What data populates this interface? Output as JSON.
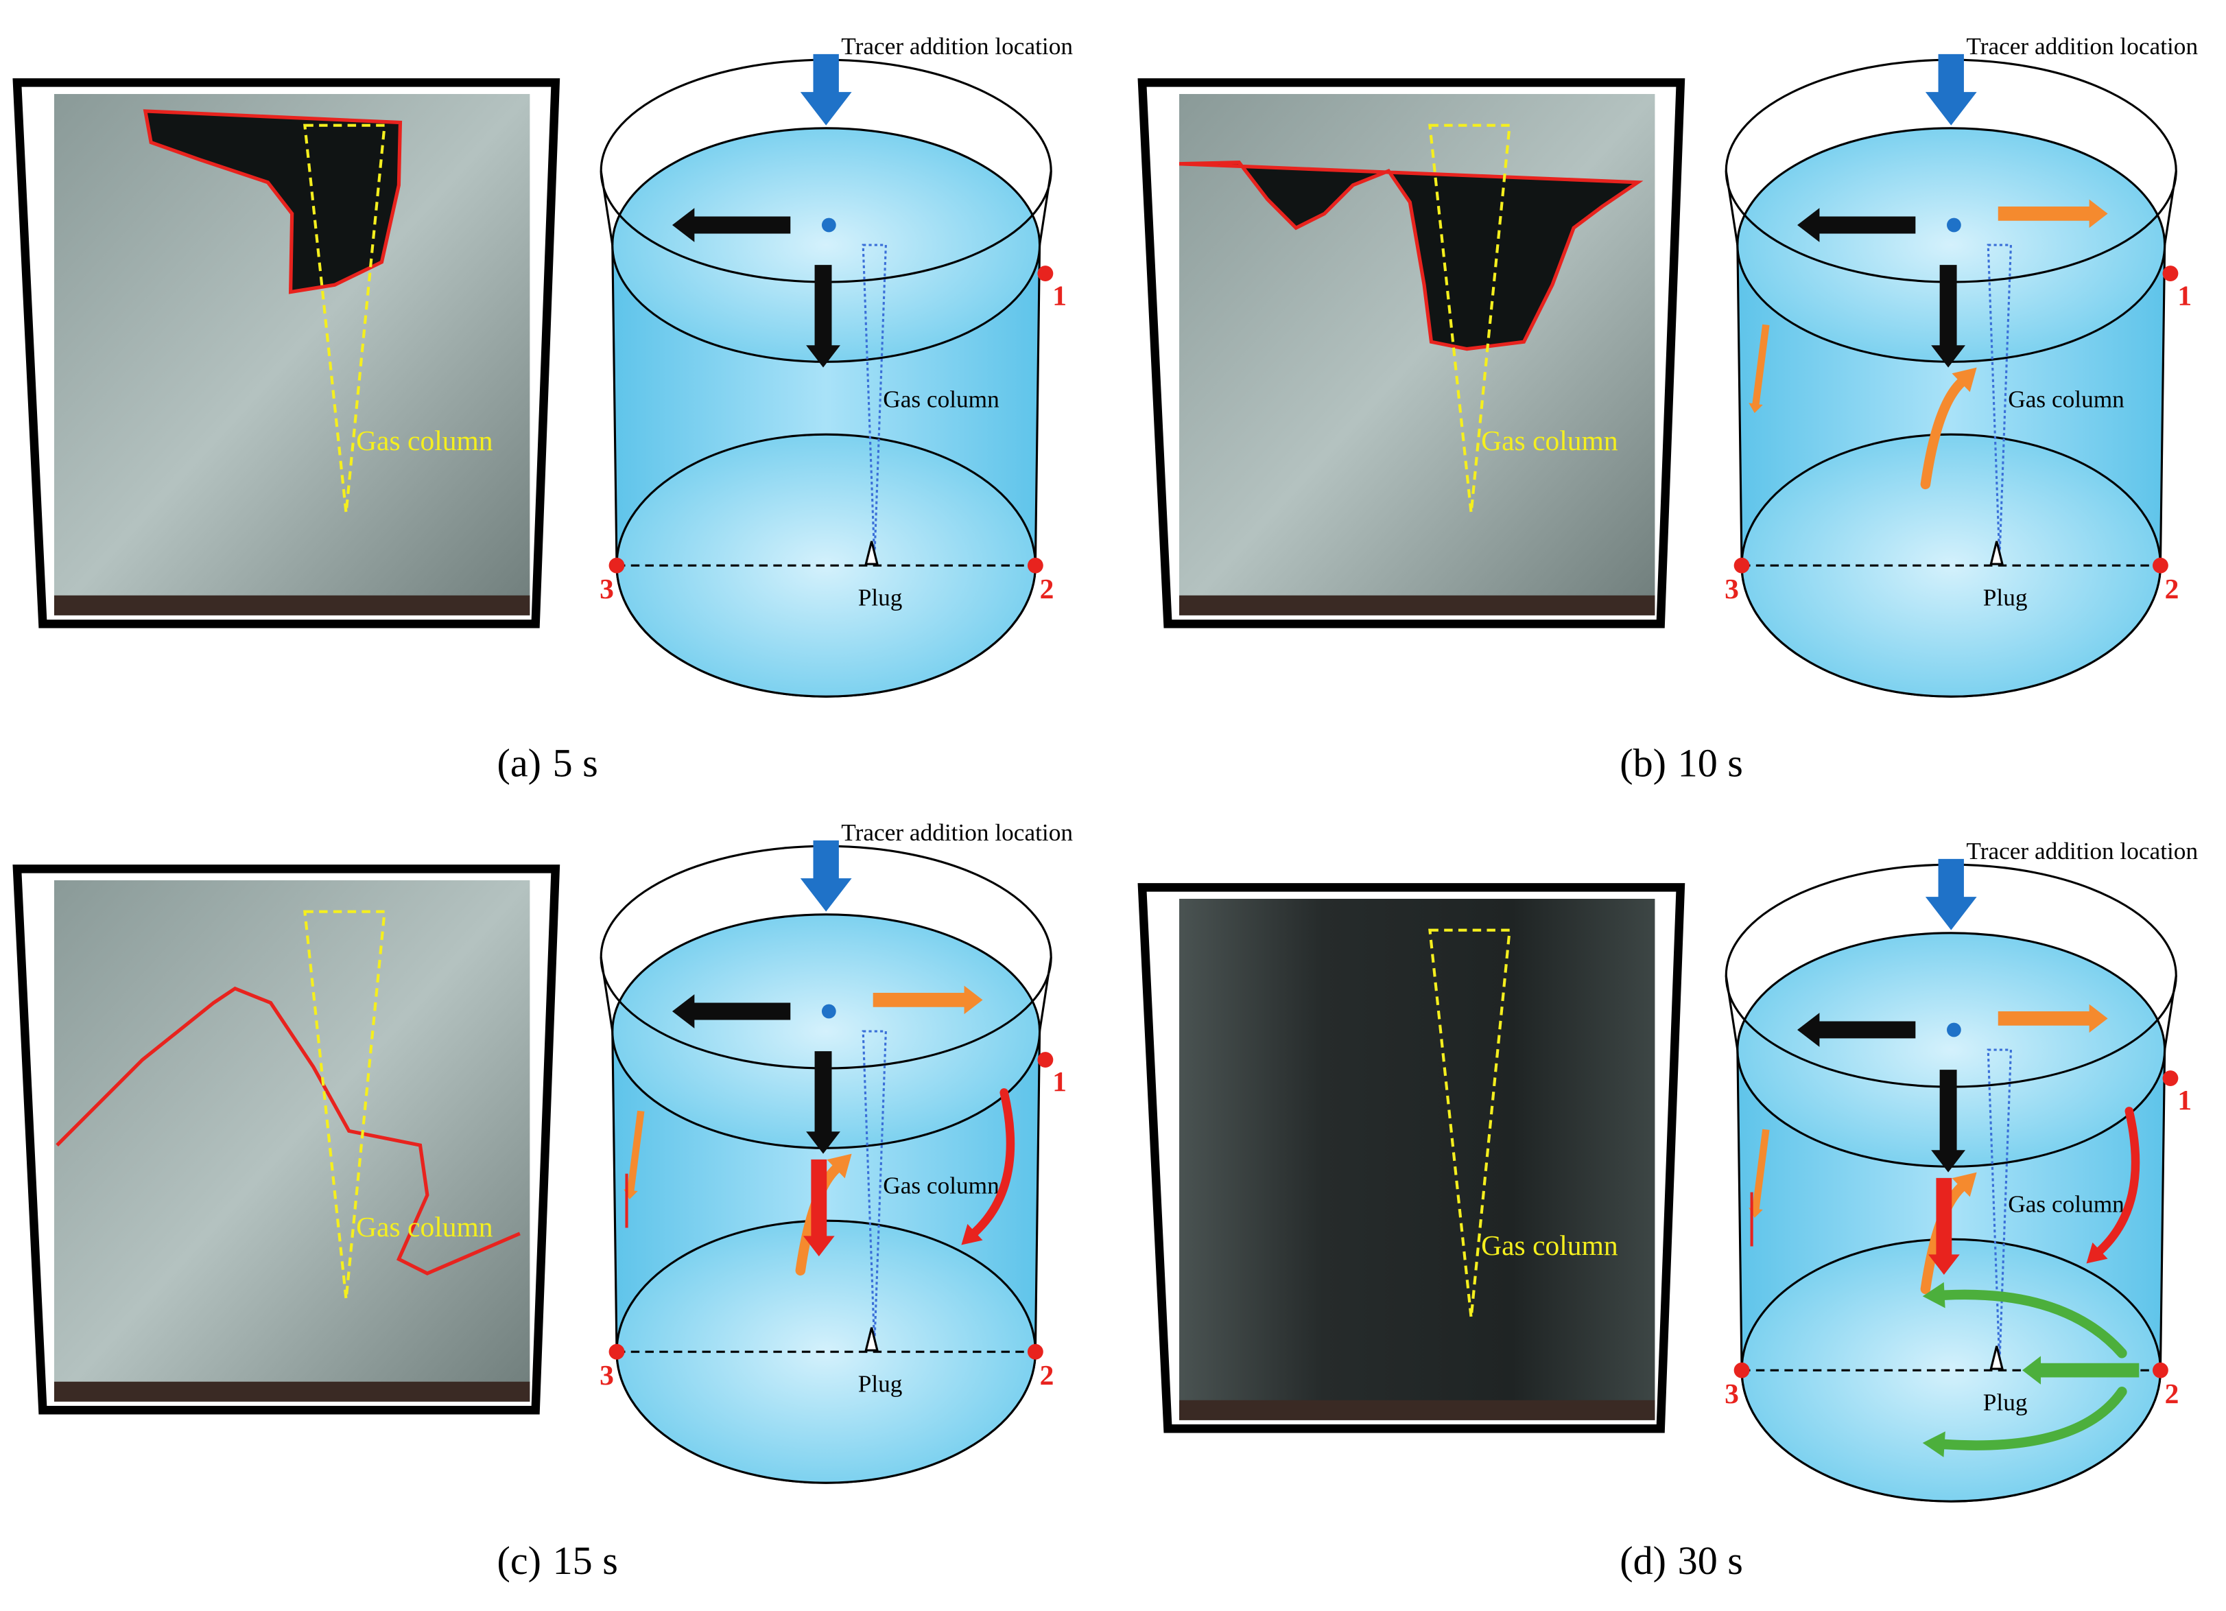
{
  "panels": [
    {
      "label": "(a)",
      "time": "5 s",
      "photo_label": "Gas column",
      "tracer": "Tracer addition location",
      "gas_column": "Gas column",
      "plug": "Plug",
      "points": [
        "1",
        "2",
        "3"
      ]
    },
    {
      "label": "(b)",
      "time": "10 s",
      "photo_label": "Gas column",
      "tracer": "Tracer addition location",
      "gas_column": "Gas column",
      "plug": "Plug",
      "points": [
        "1",
        "2",
        "3"
      ]
    },
    {
      "label": "(c)",
      "time": "15 s",
      "photo_label": "Gas column",
      "tracer": "Tracer addition location",
      "gas_column": "Gas column",
      "plug": "Plug",
      "points": [
        "1",
        "2",
        "3"
      ]
    },
    {
      "label": "(d)",
      "time": "30 s",
      "photo_label": "Gas column",
      "tracer": "Tracer addition location",
      "gas_column": "Gas column",
      "plug": "Plug",
      "points": [
        "1",
        "2",
        "3"
      ]
    }
  ]
}
